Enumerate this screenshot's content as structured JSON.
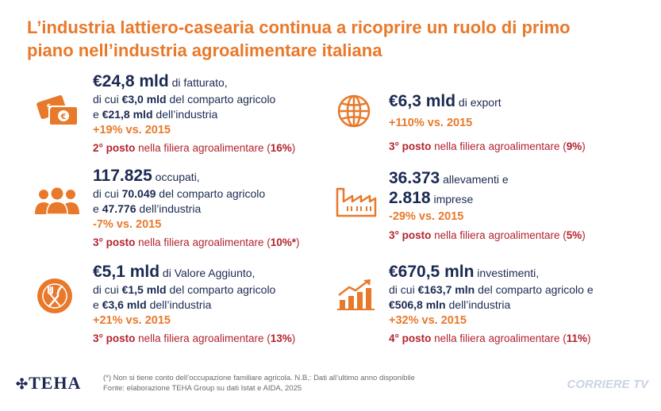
{
  "title": "L’industria lattiero-casearia continua a ricoprire un ruolo di primo piano nell’industria agroalimentare italiana",
  "left": {
    "fatturato": {
      "icon": "money-icon",
      "headline_value": "€24,8 mld",
      "headline_text": " di fatturato,",
      "line2_pre": "di cui ",
      "line2_value": "€3,0 mld",
      "line2_post": " del comparto agricolo",
      "line3_pre": "e ",
      "line3_value": "€21,8 mld",
      "line3_post": " dell’industria",
      "growth": "+19% vs. 2015",
      "rank_pos": "2° posto",
      "rank_text": " nella filiera agroalimentare (",
      "rank_pct": "16%",
      "rank_close": ")"
    },
    "occupati": {
      "icon": "people-icon",
      "headline_value": "117.825",
      "headline_text": " occupati,",
      "line2_pre": "di cui ",
      "line2_value": "70.049",
      "line2_post": " del comparto agricolo",
      "line3_pre": "e ",
      "line3_value": "47.776",
      "line3_post": " dell’industria",
      "growth": "-7% vs. 2015",
      "rank_pos": "3° posto",
      "rank_text": " nella filiera agroalimentare (",
      "rank_pct": "10%*",
      "rank_close": ")"
    },
    "valore": {
      "icon": "fork-knife-icon",
      "headline_value": "€5,1 mld",
      "headline_text": " di Valore Aggiunto,",
      "line2_pre": "di cui ",
      "line2_value": "€1,5 mld",
      "line2_post": " del comparto agricolo",
      "line3_pre": "e ",
      "line3_value": "€3,6 mld",
      "line3_post": " dell’industria",
      "growth": "+21% vs. 2015",
      "rank_pos": "3° posto",
      "rank_text": " nella filiera agroalimentare (",
      "rank_pct": "13%",
      "rank_close": ")"
    }
  },
  "right": {
    "export": {
      "icon": "globe-icon",
      "headline_value": "€6,3 mld",
      "headline_text": " di export",
      "growth": "+110% vs. 2015",
      "rank_pos": "3° posto",
      "rank_text": " nella filiera agroalimentare (",
      "rank_pct": "9%",
      "rank_close": ")"
    },
    "allevamenti": {
      "icon": "factory-icon",
      "headline_value": "36.373",
      "headline_text": " allevamenti e",
      "line2_value": "2.818",
      "line2_text": " imprese",
      "growth": "-29% vs. 2015",
      "rank_pos": "3° posto",
      "rank_text": " nella filiera agroalimentare (",
      "rank_pct": "5%",
      "rank_close": ")"
    },
    "investimenti": {
      "icon": "growth-chart-icon",
      "headline_value": "€670,5 mln",
      "headline_text": " investimenti,",
      "line2_pre": "di cui ",
      "line2_value": "€163,7 mln",
      "line2_post": " del comparto agricolo e",
      "line3_value": "€506,8 mln",
      "line3_post": " dell’industria",
      "growth": "+32% vs. 2015",
      "rank_pos": "4° posto",
      "rank_text": " nella filiera agroalimentare (",
      "rank_pct": "11%",
      "rank_close": ")"
    }
  },
  "footer": {
    "logo": "TEHA",
    "note": "(*) Non si tiene conto dell’occupazione familiare agricola. N.B.: Dati all’ultimo anno disponibile",
    "source": "Fonte: elaborazione TEHA Group su dati Istat e AIDA, 2025",
    "watermark": "CORRIERE TV"
  },
  "colors": {
    "orange": "#e8792b",
    "navy": "#1b2a52",
    "red": "#b3222e"
  }
}
